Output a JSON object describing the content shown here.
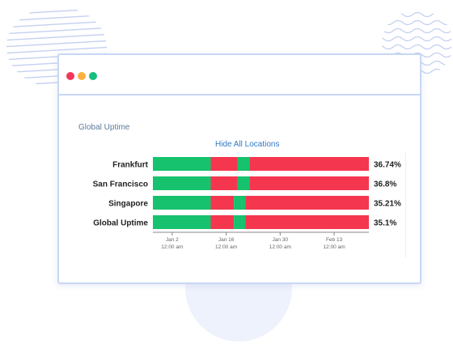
{
  "panel": {
    "title": "Global Uptime",
    "hide_link": "Hide All Locations"
  },
  "colors": {
    "up": "#16c26d",
    "down": "#f5364f"
  },
  "rows": [
    {
      "label": "Frankfurt",
      "percent": "36.74%",
      "segments": [
        {
          "status": "up",
          "start": "2023-12-28",
          "end": "2024-01-12"
        },
        {
          "status": "down",
          "start": "2024-01-12",
          "end": "2024-01-19"
        },
        {
          "status": "up",
          "start": "2024-01-19",
          "end": "2024-01-22"
        },
        {
          "status": "down",
          "start": "2024-01-22",
          "end": "2024-02-22"
        }
      ]
    },
    {
      "label": "San Francisco",
      "percent": "36.8%",
      "segments": [
        {
          "status": "up",
          "start": "2023-12-28",
          "end": "2024-01-12"
        },
        {
          "status": "down",
          "start": "2024-01-12",
          "end": "2024-01-19"
        },
        {
          "status": "up",
          "start": "2024-01-19",
          "end": "2024-01-22"
        },
        {
          "status": "down",
          "start": "2024-01-22",
          "end": "2024-02-22"
        }
      ]
    },
    {
      "label": "Singapore",
      "percent": "35.21%",
      "segments": [
        {
          "status": "up",
          "start": "2023-12-28",
          "end": "2024-01-12"
        },
        {
          "status": "down",
          "start": "2024-01-12",
          "end": "2024-01-18"
        },
        {
          "status": "up",
          "start": "2024-01-18",
          "end": "2024-01-21"
        },
        {
          "status": "down",
          "start": "2024-01-21",
          "end": "2024-02-22"
        }
      ]
    },
    {
      "label": "Global Uptime",
      "percent": "35.1%",
      "segments": [
        {
          "status": "up",
          "start": "2023-12-28",
          "end": "2024-01-12"
        },
        {
          "status": "down",
          "start": "2024-01-12",
          "end": "2024-01-18"
        },
        {
          "status": "up",
          "start": "2024-01-18",
          "end": "2024-01-21"
        },
        {
          "status": "down",
          "start": "2024-01-21",
          "end": "2024-02-22"
        }
      ]
    }
  ],
  "x_axis": {
    "range": [
      "2023-12-28",
      "2024-02-22"
    ],
    "ticks": [
      {
        "date": "2024-01-02",
        "label": "Jan 2",
        "sublabel": "12:00 am"
      },
      {
        "date": "2024-01-16",
        "label": "Jan 16",
        "sublabel": "12:00 am"
      },
      {
        "date": "2024-01-30",
        "label": "Jan 30",
        "sublabel": "12:00 am"
      },
      {
        "date": "2024-02-13",
        "label": "Feb 13",
        "sublabel": "12:00 am"
      }
    ]
  }
}
